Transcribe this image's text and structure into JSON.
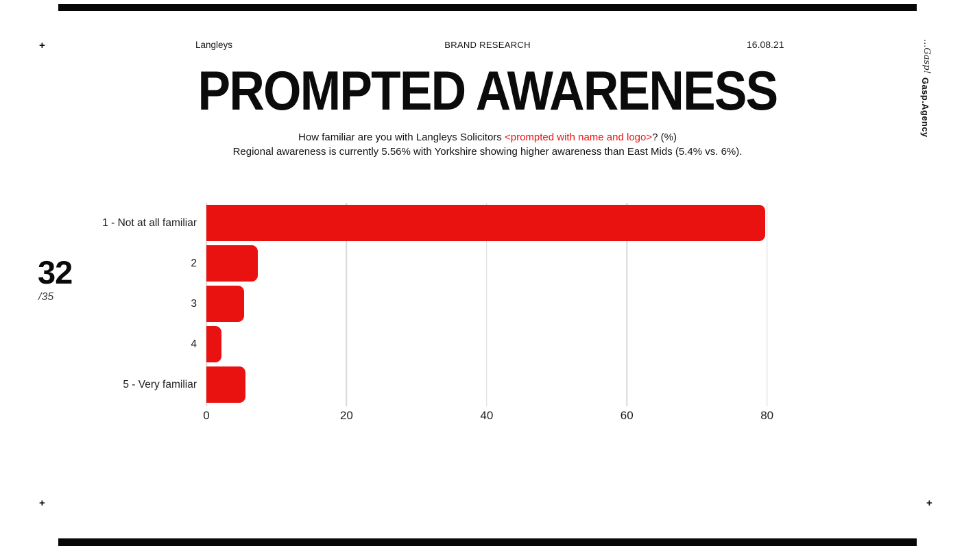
{
  "corner_marks": {
    "top_left": "+",
    "bottom_left": "+",
    "bottom_right": "+"
  },
  "header": {
    "client": "Langleys",
    "center_label": "BRAND RESEARCH",
    "date": "16.08.21"
  },
  "brand_sidebar": {
    "gasp_italic": "...Gasp!",
    "gasp_agency": "Gasp.Agency"
  },
  "title": "PROMPTED AWARENESS",
  "subtitle": {
    "line1_pre": "How familiar are you with Langleys Solicitors ",
    "line1_red": "<prompted with name and logo>",
    "line1_post": "? (%)",
    "line2": "Regional awareness is currently 5.56% with Yorkshire showing higher awareness than East Mids (5.4% vs. 6%)."
  },
  "page_counter": {
    "current": "32",
    "total": "/35"
  },
  "colors": {
    "accent_red": "#ea1111",
    "grid_gray": "#d9d9d9",
    "text_black": "#111111"
  },
  "chart_data": {
    "type": "bar",
    "orientation": "horizontal",
    "title": "PROMPTED AWARENESS",
    "xlabel": "",
    "ylabel": "",
    "categories": [
      "1 - Not at all familiar",
      "2",
      "3",
      "4",
      "5 - Very familiar"
    ],
    "values": [
      79.7,
      7.3,
      5.4,
      2.2,
      5.6
    ],
    "xticks": [
      0,
      20,
      40,
      60,
      80
    ],
    "xlim": [
      0,
      86
    ],
    "grid": true,
    "legend": false,
    "bar_color": "#ea1111"
  }
}
